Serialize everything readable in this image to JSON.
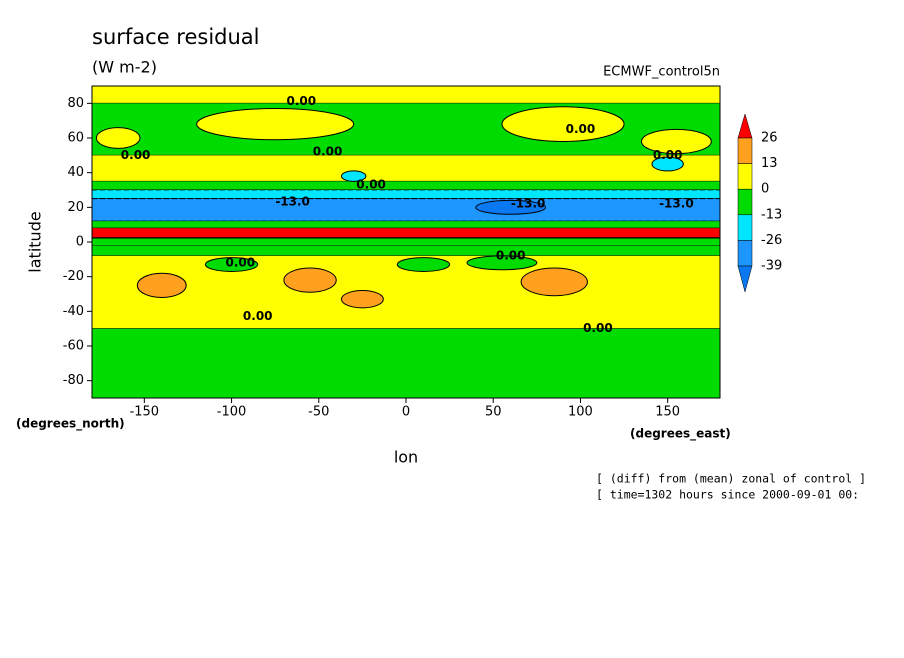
{
  "chart_data": {
    "type": "contour",
    "title": "surface residual",
    "subtitle": "(W m-2)",
    "source_label": "ECMWF_control5n",
    "x_label": "lon",
    "y_label": "latitude",
    "x_unit_label": "(degrees_east)",
    "y_unit_label": "(degrees_north)",
    "footnotes": [
      "[ (diff) from (mean) zonal of control ]",
      "[ time=1302 hours since 2000-09-01 00:"
    ],
    "xlim": [
      -180,
      180
    ],
    "ylim": [
      -90,
      90
    ],
    "xticks": [
      -150,
      -100,
      -50,
      0,
      50,
      100,
      150
    ],
    "yticks": [
      -80,
      -60,
      -40,
      -20,
      0,
      20,
      40,
      60,
      80
    ],
    "levels": [
      -39,
      -26,
      -13,
      0,
      13,
      26
    ],
    "level_colors": [
      "#0a78f0",
      "#1e96ff",
      "#00e6ff",
      "#00dc00",
      "#ffff00",
      "#ffa01e",
      "#ff0000"
    ],
    "bands": {
      "lat_edges": [
        90,
        80,
        50,
        35,
        30,
        25,
        12,
        8,
        2,
        -2,
        -8,
        -50,
        -90
      ],
      "values": [
        5,
        -5,
        5,
        -5,
        -20,
        -35,
        -5,
        30,
        -5,
        -5,
        5,
        -5
      ]
    },
    "blobs": {
      "lon": [
        -75,
        90,
        155,
        -165,
        -30,
        150,
        -100,
        10,
        55,
        -140,
        -55,
        -25,
        85,
        60
      ],
      "lat": [
        68,
        68,
        58,
        60,
        38,
        45,
        -13,
        -13,
        -12,
        -25,
        -22,
        -33,
        -23,
        20
      ],
      "width": [
        90,
        70,
        40,
        25,
        14,
        18,
        30,
        30,
        40,
        28,
        30,
        24,
        38,
        40
      ],
      "height": [
        18,
        20,
        14,
        12,
        6,
        8,
        8,
        8,
        8,
        14,
        14,
        10,
        16,
        8
      ],
      "values": [
        5,
        5,
        5,
        5,
        -20,
        -20,
        -5,
        -5,
        -5,
        20,
        20,
        20,
        20,
        -45
      ]
    },
    "contour_labels": [
      {
        "text": "0.00",
        "lon": -60,
        "lat": 81
      },
      {
        "text": "0.00",
        "lon": -45,
        "lat": 52
      },
      {
        "text": "0.00",
        "lon": 100,
        "lat": 65
      },
      {
        "text": "0.00",
        "lon": -155,
        "lat": 50
      },
      {
        "text": "0.00",
        "lon": -20,
        "lat": 33
      },
      {
        "text": "0.00",
        "lon": 150,
        "lat": 50
      },
      {
        "text": "0.00",
        "lon": -95,
        "lat": -12
      },
      {
        "text": "0.00",
        "lon": 60,
        "lat": -8
      },
      {
        "text": "0.00",
        "lon": -85,
        "lat": -43
      },
      {
        "text": "0.00",
        "lon": 110,
        "lat": -50
      },
      {
        "text": "-13.0",
        "lon": -65,
        "lat": 23
      },
      {
        "text": "-13.0",
        "lon": 70,
        "lat": 22
      },
      {
        "text": "-13.0",
        "lon": 155,
        "lat": 22
      }
    ]
  }
}
